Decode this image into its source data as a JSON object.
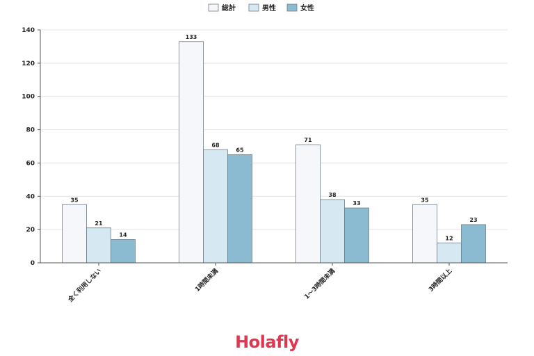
{
  "brand": {
    "name": "Holafly",
    "color": "#e0364f"
  },
  "chart_data": {
    "type": "bar",
    "categories": [
      "全く利用しない",
      "1時間未満",
      "1〜3時間未満",
      "3時間以上"
    ],
    "series": [
      {
        "name": "総計",
        "values": [
          35,
          133,
          71,
          35
        ],
        "color": "#f5f7fa"
      },
      {
        "name": "男性",
        "values": [
          21,
          68,
          38,
          12
        ],
        "color": "#d6e8f1"
      },
      {
        "name": "女性",
        "values": [
          14,
          65,
          33,
          23
        ],
        "color": "#8bbbd1"
      }
    ],
    "ylim": [
      0,
      140
    ],
    "yticks": [
      0,
      20,
      40,
      60,
      80,
      100,
      120,
      140
    ],
    "grid": true,
    "legend": "top-center",
    "title": "",
    "xlabel": "",
    "ylabel": ""
  }
}
